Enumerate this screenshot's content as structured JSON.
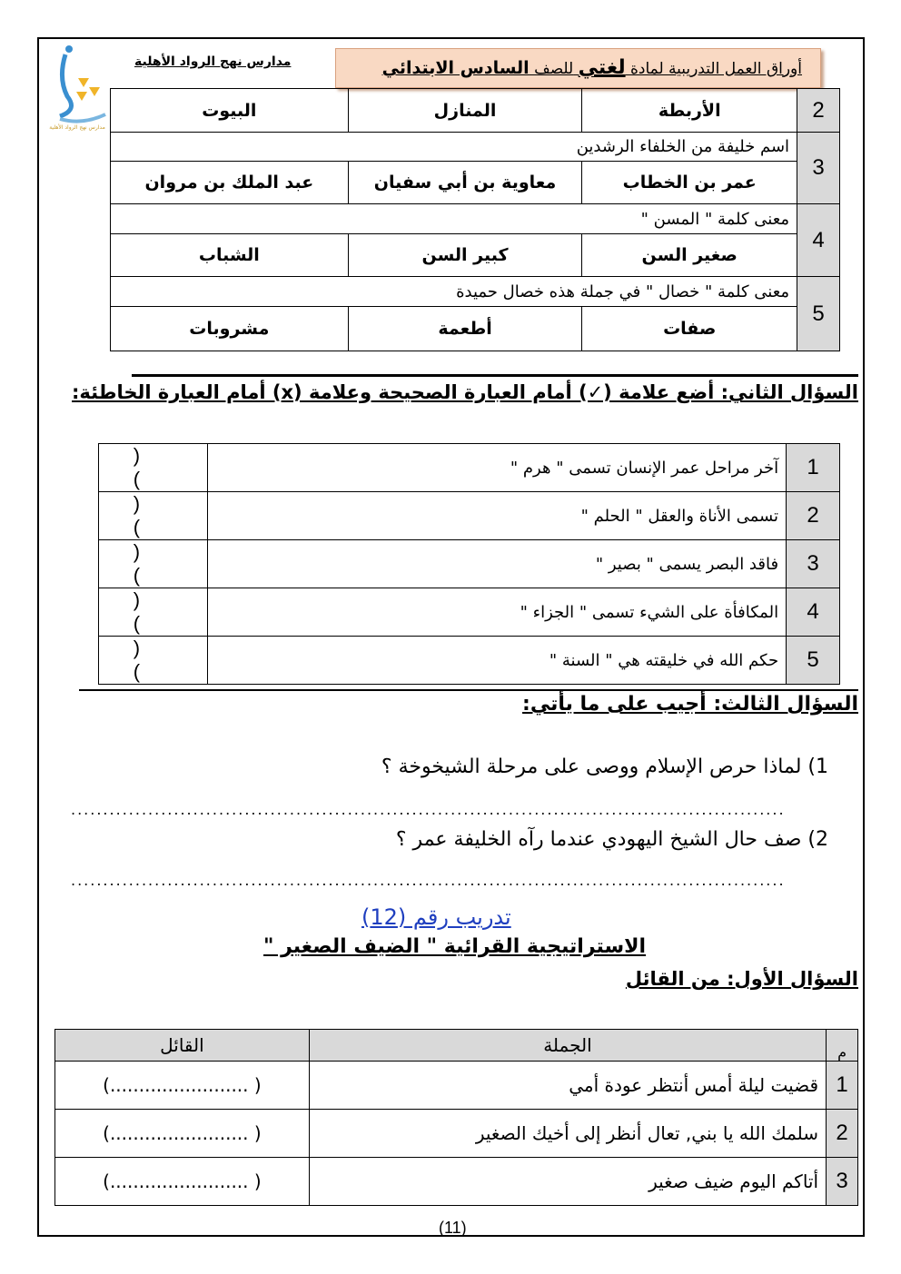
{
  "header": {
    "title_prefix": "أوراق العمل التدريبية لمادة",
    "subject": "لغتي",
    "title_mid": "للصف",
    "grade": "السادس الابتدائي",
    "school": "مدارس نهج الرواد الأهلية",
    "logo_text": "مدارس نهج الرواد الأهلية"
  },
  "q1": {
    "rows": [
      {
        "num": "2",
        "question": "",
        "options": [
          "الأربطة",
          "المنازل",
          "البيوت"
        ]
      },
      {
        "num": "3",
        "question": "اسم خليفة من الخلفاء الرشدين",
        "options": [
          "عمر بن الخطاب",
          "معاوية بن أبي سفيان",
          "عبد الملك بن مروان"
        ]
      },
      {
        "num": "4",
        "question": "معنى كلمة \" المسن \"",
        "options": [
          "صغير السن",
          "كبير السن",
          "الشباب"
        ]
      },
      {
        "num": "5",
        "question": "معنى كلمة \" خصال \" في جملة هذه خصال حميدة",
        "options": [
          "صفات",
          "أطعمة",
          "مشروبات"
        ]
      }
    ]
  },
  "q2": {
    "heading": "السؤال الثاني: أضع علامة (✓) أمام العبارة الصحيحة وعلامة (x) أمام العبارة الخاطئة:",
    "answer_blank": "(  )",
    "rows": [
      {
        "num": "1",
        "text": "آخر مراحل عمر الإنسان تسمى \" هرم \""
      },
      {
        "num": "2",
        "text": "تسمى الأناة والعقل \" الحلم \""
      },
      {
        "num": "3",
        "text": "فاقد البصر يسمى \" بصير \""
      },
      {
        "num": "4",
        "text": "المكافأة على الشيء تسمى \" الجزاء \""
      },
      {
        "num": "5",
        "text": "حكم الله في خليقته هي \" السنة \""
      }
    ]
  },
  "q3": {
    "heading": "السؤال الثالث: أجيب على ما يأتي:",
    "items": [
      "1) لماذا حرص الإسلام ووصى على مرحلة الشيخوخة ؟",
      "2) صف حال الشيخ اليهودي عندما رآه الخليفة عمر ؟"
    ],
    "dots": "..............................................................................................................."
  },
  "exercise": {
    "title": "تدريب رقم (12)",
    "strategy": "الاستراتيجية القرائية \" الضيف الصغير \"",
    "q1_heading": "السؤال الأول: من القائل"
  },
  "speaker_table": {
    "headers": [
      "م",
      "الجملة",
      "القائل"
    ],
    "blank": "(........................ )",
    "rows": [
      {
        "num": "1",
        "text": "قضيت ليلة أمس أنتظر عودة أمي"
      },
      {
        "num": "2",
        "text": "سلمك الله يا بني, تعال أنظر إلى أخيك الصغير"
      },
      {
        "num": "3",
        "text": "أتاكم اليوم ضيف صغير"
      }
    ]
  },
  "footer": {
    "page": "(11)"
  },
  "colors": {
    "header_bg": "#f9d9c3",
    "number_cell": "#d9d9d9",
    "link": "#1f3fbf"
  }
}
